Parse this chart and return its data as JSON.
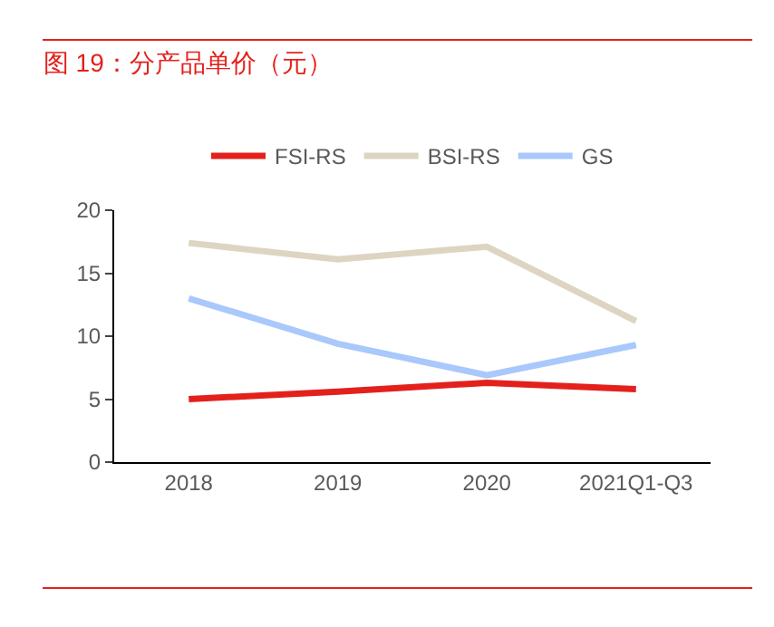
{
  "chart_data": {
    "type": "line",
    "title": "图 19：分产品单价（元）",
    "categories": [
      "2018",
      "2019",
      "2020",
      "2021Q1-Q3"
    ],
    "series": [
      {
        "name": "FSI-RS",
        "color": "#e3211c",
        "values": [
          5.0,
          5.6,
          6.3,
          5.8
        ]
      },
      {
        "name": "BSI-RS",
        "color": "#ddd5c2",
        "values": [
          17.4,
          16.1,
          17.1,
          11.2
        ]
      },
      {
        "name": "GS",
        "color": "#a9c8fb",
        "values": [
          13.0,
          9.4,
          6.9,
          9.3
        ]
      }
    ],
    "ylim": [
      0,
      20
    ],
    "yticks": [
      0,
      5,
      10,
      15,
      20
    ],
    "legend": "top",
    "marker": "none",
    "line_style": "solid"
  }
}
